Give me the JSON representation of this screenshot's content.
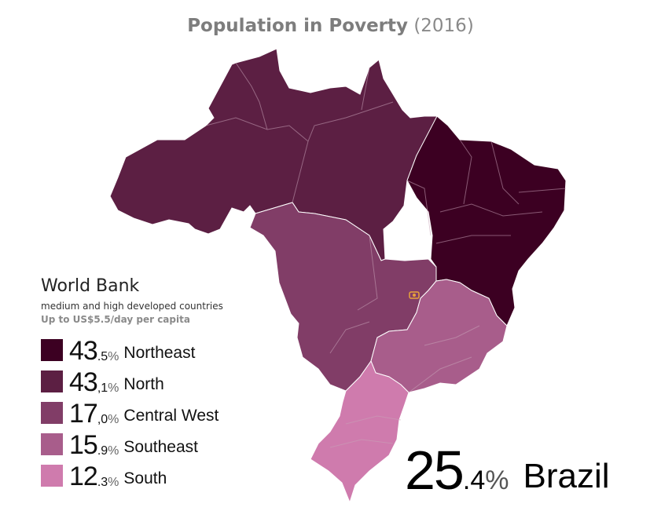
{
  "title": {
    "bold": "Population in Poverty",
    "year": "(2016)"
  },
  "legend": {
    "title": "World Bank",
    "subtitle": "medium and high developed countries",
    "threshold": "Up to US$5.5/day per capita",
    "items": [
      {
        "int": "43",
        "dec": ".5",
        "sign": "%",
        "name": "Northeast",
        "value": 43.5,
        "color": "#3c0022"
      },
      {
        "int": "43",
        "dec": ",1",
        "sign": "%",
        "name": "North",
        "value": 43.1,
        "color": "#5c1f43"
      },
      {
        "int": "17",
        "dec": ",0",
        "sign": "%",
        "name": "Central West",
        "value": 17.0,
        "color": "#813d67"
      },
      {
        "int": "15",
        "dec": ".9",
        "sign": "%",
        "name": "Southeast",
        "value": 15.9,
        "color": "#a85d8b"
      },
      {
        "int": "12",
        "dec": ".3",
        "sign": "%",
        "name": "South",
        "value": 12.3,
        "color": "#cf7bad"
      }
    ]
  },
  "total": {
    "int": "25",
    "dec": ".4",
    "sign": "%",
    "name": "Brazil",
    "value": 25.4
  },
  "capital_marker_color": "#e8a33a"
}
